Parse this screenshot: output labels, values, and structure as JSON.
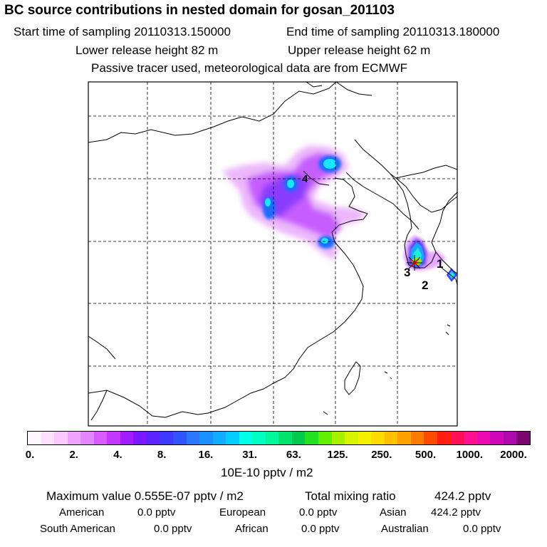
{
  "header": {
    "title": "BC  source contributions in nested domain for gosan_201103",
    "start_time": "Start time of sampling 20110313.150000",
    "end_time": "End time of sampling 20110313.180000",
    "lower_height": "Lower release height   82 m",
    "upper_height": "Upper release height   62 m",
    "tracer_note": "Passive tracer used, meteorological data are from ECMWF"
  },
  "map": {
    "markers": [
      {
        "label": "1"
      },
      {
        "label": "2"
      },
      {
        "label": "3"
      },
      {
        "label": "4"
      }
    ]
  },
  "colorbar": {
    "colors": [
      "#fff6ff",
      "#ffe0ff",
      "#fbc8ff",
      "#f0a4ff",
      "#e487ff",
      "#d65cff",
      "#c337ff",
      "#a31cff",
      "#7d17ff",
      "#5a23ff",
      "#3e39ff",
      "#2f55ff",
      "#2e75ff",
      "#1a90ff",
      "#12acff",
      "#05ccff",
      "#00ffe9",
      "#00ffc1",
      "#00f79a",
      "#00e36d",
      "#00c94c",
      "#24e023",
      "#64ee00",
      "#a8f200",
      "#d8f500",
      "#f6f000",
      "#ffdc00",
      "#ffc000",
      "#ffa200",
      "#ff7a00",
      "#ff4b00",
      "#ff1c10",
      "#ff0f58",
      "#ff108f",
      "#ec0bb1",
      "#d006b9",
      "#ad0aad",
      "#7e066f"
    ],
    "ticks": [
      "0.",
      "2.",
      "4.",
      "8.",
      "16.",
      "31.",
      "63.",
      "125.",
      "250.",
      "500.",
      "1000.",
      "2000."
    ],
    "unit": "10E-10 pptv / m2"
  },
  "stats": {
    "max_label": "Maximum value  0.555E-07 pptv / m2",
    "total_label": "Total mixing ratio",
    "total_value": "424.2 pptv",
    "american_label": "American",
    "american_value": "0.0 pptv",
    "european_label": "European",
    "european_value": "0.0 pptv",
    "asian_label": "Asian",
    "asian_value": "424.2 pptv",
    "south_american_label": "South American",
    "south_american_value": "0.0 pptv",
    "african_label": "African",
    "african_value": "0.0 pptv",
    "australian_label": "Australian",
    "australian_value": "0.0 pptv"
  }
}
